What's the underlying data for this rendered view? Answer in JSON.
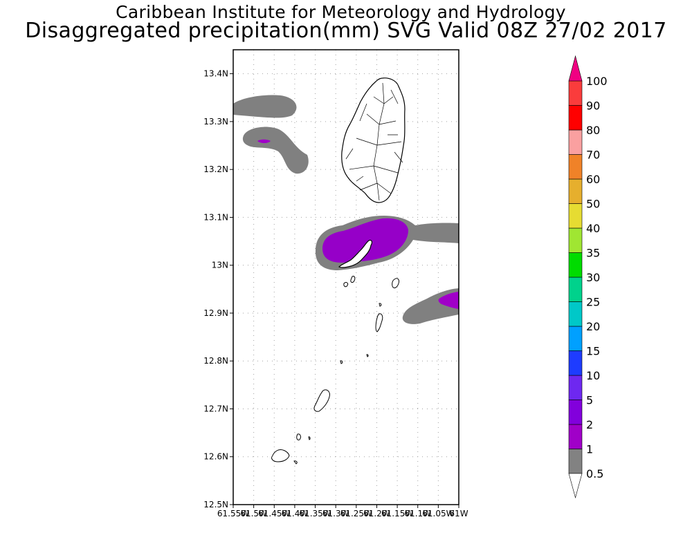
{
  "header": {
    "institute": "Caribbean Institute for Meteorology and Hydrology",
    "product": "Disaggregated precipitation(mm) SVG Valid 08Z 27/02 2017"
  },
  "map": {
    "lon_range": [
      -61.55,
      -61.0
    ],
    "lat_range": [
      12.5,
      13.45
    ],
    "lat_ticks": [
      {
        "value": 13.4,
        "label": "13.4N"
      },
      {
        "value": 13.3,
        "label": "13.3N"
      },
      {
        "value": 13.2,
        "label": "13.2N"
      },
      {
        "value": 13.1,
        "label": "13.1N"
      },
      {
        "value": 13.0,
        "label": "13N"
      },
      {
        "value": 12.9,
        "label": "12.9N"
      },
      {
        "value": 12.8,
        "label": "12.8N"
      },
      {
        "value": 12.7,
        "label": "12.7N"
      },
      {
        "value": 12.6,
        "label": "12.6N"
      },
      {
        "value": 12.5,
        "label": "12.5N"
      }
    ],
    "lon_ticks": [
      {
        "value": -61.55,
        "label": "61.55W"
      },
      {
        "value": -61.5,
        "label": "61.5W"
      },
      {
        "value": -61.45,
        "label": "61.45W"
      },
      {
        "value": -61.4,
        "label": "61.4W"
      },
      {
        "value": -61.35,
        "label": "61.35W"
      },
      {
        "value": -61.3,
        "label": "61.3W"
      },
      {
        "value": -61.25,
        "label": "61.25W"
      },
      {
        "value": -61.2,
        "label": "61.2W"
      },
      {
        "value": -61.15,
        "label": "61.15W"
      },
      {
        "value": -61.1,
        "label": "61.1W"
      },
      {
        "value": -61.05,
        "label": "61.05W"
      },
      {
        "value": -61.0,
        "label": "61W"
      }
    ],
    "grid": true,
    "colors": {
      "light_rain": "#808080",
      "moderate_rain": "#9600c8",
      "heavy_rain": "#a000c8",
      "coast": "#000000"
    }
  },
  "colorbar": {
    "levels": [
      "0.5",
      "1",
      "2",
      "5",
      "10",
      "15",
      "20",
      "25",
      "30",
      "35",
      "40",
      "50",
      "60",
      "70",
      "80",
      "90",
      "100"
    ],
    "colors": [
      "#828282",
      "#a000c8",
      "#8200dc",
      "#6e28f0",
      "#1e3cff",
      "#00a0ff",
      "#00c8c8",
      "#00d28c",
      "#00dc00",
      "#a0e632",
      "#e6dc32",
      "#e6af2d",
      "#f08228",
      "#faa0a0",
      "#ff0000",
      "#fa3c3c"
    ],
    "top_arrow_color": "#f00082",
    "bottom_arrow_color": "#ffffff"
  }
}
